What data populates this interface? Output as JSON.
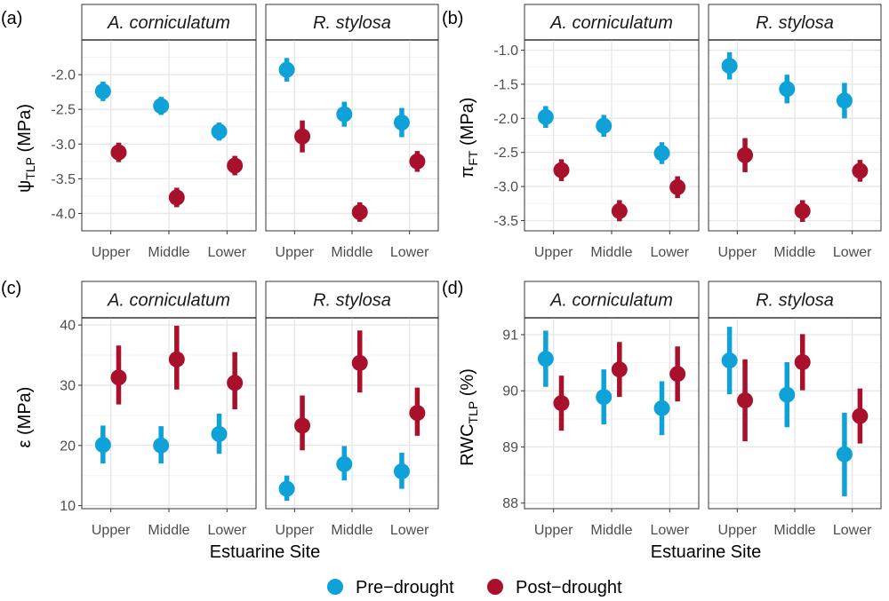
{
  "colors": {
    "pre": "#0fa2d8",
    "post": "#a8102b",
    "strip_bg": "#ffffff",
    "grid": "#e6e6e6"
  },
  "figure": {
    "x_axis_title": "Estuarine Site",
    "legend": [
      {
        "key": "pre",
        "label": "Pre−drought"
      },
      {
        "key": "post",
        "label": "Post−drought"
      }
    ]
  },
  "chart_data": [
    {
      "type": "scatter",
      "panel": "(a)",
      "ylabel_main": "ψ",
      "ylabel_sub": "TLP",
      "ylabel_unit": " (MPa)",
      "ylim": [
        -4.25,
        -1.5
      ],
      "yticks": [
        -2.0,
        -2.5,
        -3.0,
        -3.5,
        -4.0
      ],
      "ytick_labels": [
        "-2.0",
        "-2.5",
        "-3.0",
        "-3.5",
        "-4.0"
      ],
      "categories": [
        "Upper",
        "Middle",
        "Lower"
      ],
      "facets": [
        {
          "strip": "A. corniculatum",
          "series": [
            {
              "key": "pre",
              "values": [
                -2.24,
                -2.45,
                -2.82
              ],
              "lower": [
                -2.38,
                -2.58,
                -2.95
              ],
              "upper": [
                -2.1,
                -2.32,
                -2.69
              ]
            },
            {
              "key": "post",
              "values": [
                -3.12,
                -3.77,
                -3.31
              ],
              "lower": [
                -3.26,
                -3.91,
                -3.45
              ],
              "upper": [
                -2.98,
                -3.63,
                -3.17
              ]
            }
          ]
        },
        {
          "strip": "R. stylosa",
          "series": [
            {
              "key": "pre",
              "values": [
                -1.93,
                -2.57,
                -2.69
              ],
              "lower": [
                -2.1,
                -2.75,
                -2.9
              ],
              "upper": [
                -1.76,
                -2.39,
                -2.48
              ]
            },
            {
              "key": "post",
              "values": [
                -2.89,
                -3.98,
                -3.25
              ],
              "lower": [
                -3.12,
                -4.12,
                -3.4
              ],
              "upper": [
                -2.66,
                -3.84,
                -3.1
              ]
            }
          ]
        }
      ]
    },
    {
      "type": "scatter",
      "panel": "(b)",
      "ylabel_main": "π",
      "ylabel_sub": "FT",
      "ylabel_unit": " (MPa)",
      "ylim": [
        -3.65,
        -0.85
      ],
      "yticks": [
        -1.0,
        -1.5,
        -2.0,
        -2.5,
        -3.0,
        -3.5
      ],
      "ytick_labels": [
        "-1.0",
        "-1.5",
        "-2.0",
        "-2.5",
        "-3.0",
        "-3.5"
      ],
      "categories": [
        "Upper",
        "Middle",
        "Lower"
      ],
      "facets": [
        {
          "strip": "A. corniculatum",
          "series": [
            {
              "key": "pre",
              "values": [
                -1.98,
                -2.11,
                -2.51
              ],
              "lower": [
                -2.14,
                -2.27,
                -2.67
              ],
              "upper": [
                -1.82,
                -1.95,
                -2.35
              ]
            },
            {
              "key": "post",
              "values": [
                -2.76,
                -3.36,
                -3.01
              ],
              "lower": [
                -2.92,
                -3.51,
                -3.17
              ],
              "upper": [
                -2.6,
                -3.2,
                -2.85
              ]
            }
          ]
        },
        {
          "strip": "R. stylosa",
          "series": [
            {
              "key": "pre",
              "values": [
                -1.23,
                -1.57,
                -1.74
              ],
              "lower": [
                -1.43,
                -1.78,
                -2.0
              ],
              "upper": [
                -1.03,
                -1.36,
                -1.48
              ]
            },
            {
              "key": "post",
              "values": [
                -2.54,
                -3.36,
                -2.77
              ],
              "lower": [
                -2.79,
                -3.52,
                -2.93
              ],
              "upper": [
                -2.29,
                -3.2,
                -2.61
              ]
            }
          ]
        }
      ]
    },
    {
      "type": "scatter",
      "panel": "(c)",
      "ylabel_main": "ε",
      "ylabel_sub": "",
      "ylabel_unit": " (MPa)",
      "ylim": [
        9.5,
        41.2
      ],
      "yticks": [
        10,
        20,
        30,
        40
      ],
      "ytick_labels": [
        "10",
        "20",
        "30",
        "40"
      ],
      "categories": [
        "Upper",
        "Middle",
        "Lower"
      ],
      "facets": [
        {
          "strip": "A. corniculatum",
          "series": [
            {
              "key": "pre",
              "values": [
                20.1,
                20.0,
                21.9
              ],
              "lower": [
                17.0,
                17.0,
                18.6
              ],
              "upper": [
                23.3,
                23.2,
                25.3
              ]
            },
            {
              "key": "post",
              "values": [
                31.3,
                34.3,
                30.4
              ],
              "lower": [
                26.8,
                29.3,
                26.0
              ],
              "upper": [
                36.6,
                39.9,
                35.5
              ]
            }
          ]
        },
        {
          "strip": "R. stylosa",
          "series": [
            {
              "key": "pre",
              "values": [
                12.8,
                16.9,
                15.7
              ],
              "lower": [
                10.8,
                14.2,
                12.8
              ],
              "upper": [
                15.0,
                19.9,
                18.8
              ]
            },
            {
              "key": "post",
              "values": [
                23.3,
                33.7,
                25.4
              ],
              "lower": [
                19.2,
                28.8,
                21.6
              ],
              "upper": [
                28.3,
                39.1,
                29.6
              ]
            }
          ]
        }
      ]
    },
    {
      "type": "scatter",
      "panel": "(d)",
      "ylabel_main": "RWC",
      "ylabel_sub": "TLP",
      "ylabel_unit": " (%)",
      "ylim": [
        87.9,
        91.3
      ],
      "yticks": [
        88,
        89,
        90,
        91
      ],
      "ytick_labels": [
        "88",
        "89",
        "90",
        "91"
      ],
      "categories": [
        "Upper",
        "Middle",
        "Lower"
      ],
      "facets": [
        {
          "strip": "A. corniculatum",
          "series": [
            {
              "key": "pre",
              "values": [
                90.57,
                89.89,
                89.69
              ],
              "lower": [
                90.07,
                89.4,
                89.21
              ],
              "upper": [
                91.07,
                90.38,
                90.17
              ]
            },
            {
              "key": "post",
              "values": [
                89.78,
                90.38,
                90.3
              ],
              "lower": [
                89.29,
                89.89,
                89.81
              ],
              "upper": [
                90.27,
                90.87,
                90.79
              ]
            }
          ]
        },
        {
          "strip": "R. stylosa",
          "series": [
            {
              "key": "pre",
              "values": [
                90.54,
                89.93,
                88.87
              ],
              "lower": [
                89.94,
                89.35,
                88.12
              ],
              "upper": [
                91.14,
                90.51,
                89.61
              ]
            },
            {
              "key": "post",
              "values": [
                89.83,
                90.51,
                89.55
              ],
              "lower": [
                89.1,
                90.01,
                89.06
              ],
              "upper": [
                90.56,
                91.01,
                90.04
              ]
            }
          ]
        }
      ]
    }
  ]
}
